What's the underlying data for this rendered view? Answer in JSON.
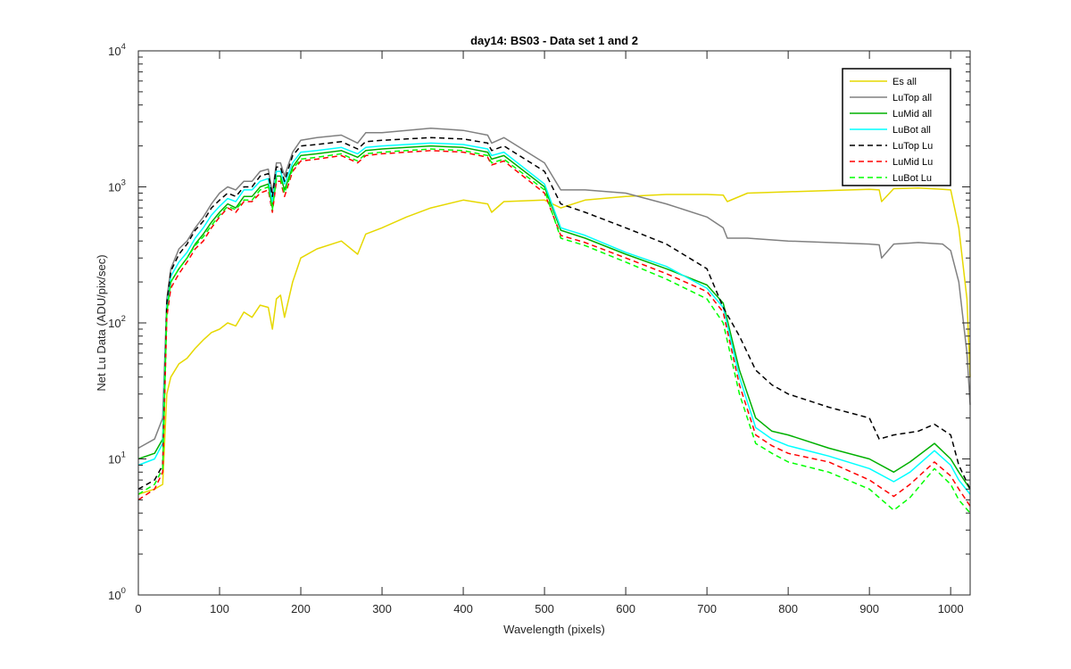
{
  "chart_data": {
    "type": "line",
    "title": "day14: BS03 - Data set 1 and 2",
    "xlabel": "Wavelength (pixels)",
    "ylabel": "Net Lu Data (ADU/pix/sec)",
    "xlim": [
      0,
      1024
    ],
    "ylim": [
      1,
      10000
    ],
    "yscale": "log",
    "grid": false,
    "legend_position": "top-right",
    "xticks": [
      0,
      100,
      200,
      300,
      400,
      500,
      600,
      700,
      800,
      900,
      1000
    ],
    "xtick_labels": [
      "0",
      "100",
      "200",
      "300",
      "400",
      "500",
      "600",
      "700",
      "800",
      "900",
      "1000"
    ],
    "yticks": [
      1,
      10,
      100,
      1000,
      10000
    ],
    "ytick_labels": [
      {
        "base": "10",
        "exp": "0"
      },
      {
        "base": "10",
        "exp": "1"
      },
      {
        "base": "10",
        "exp": "2"
      },
      {
        "base": "10",
        "exp": "3"
      },
      {
        "base": "10",
        "exp": "4"
      }
    ],
    "series": [
      {
        "name": "Es  all",
        "color": "#e6d800",
        "dash": "solid",
        "x": [
          0,
          20,
          30,
          35,
          40,
          50,
          60,
          70,
          80,
          90,
          100,
          110,
          120,
          130,
          140,
          150,
          160,
          165,
          170,
          175,
          180,
          190,
          200,
          220,
          250,
          270,
          280,
          300,
          330,
          360,
          400,
          430,
          435,
          450,
          500,
          520,
          550,
          600,
          650,
          700,
          720,
          725,
          750,
          800,
          850,
          900,
          912,
          915,
          930,
          960,
          990,
          1000,
          1010,
          1020,
          1024
        ],
        "y": [
          5.5,
          6,
          6.5,
          30,
          40,
          50,
          55,
          65,
          75,
          85,
          90,
          100,
          95,
          120,
          110,
          135,
          130,
          90,
          150,
          160,
          110,
          200,
          300,
          350,
          400,
          320,
          450,
          500,
          600,
          700,
          800,
          750,
          650,
          780,
          800,
          700,
          800,
          850,
          880,
          880,
          870,
          780,
          900,
          920,
          940,
          960,
          950,
          780,
          970,
          980,
          960,
          950,
          500,
          150,
          40
        ]
      },
      {
        "name": "LuTop  all",
        "color": "#808080",
        "dash": "solid",
        "x": [
          0,
          20,
          30,
          35,
          40,
          50,
          60,
          70,
          80,
          90,
          100,
          110,
          120,
          130,
          140,
          150,
          160,
          165,
          170,
          175,
          180,
          190,
          200,
          220,
          250,
          270,
          280,
          300,
          330,
          360,
          400,
          430,
          435,
          450,
          500,
          520,
          550,
          600,
          650,
          700,
          720,
          725,
          750,
          800,
          850,
          900,
          912,
          915,
          930,
          960,
          990,
          1000,
          1010,
          1020,
          1024
        ],
        "y": [
          12,
          14,
          20,
          150,
          250,
          350,
          400,
          500,
          600,
          750,
          900,
          1000,
          950,
          1100,
          1100,
          1300,
          1350,
          900,
          1500,
          1500,
          1200,
          1800,
          2200,
          2300,
          2400,
          2100,
          2500,
          2500,
          2600,
          2700,
          2600,
          2400,
          2100,
          2300,
          1500,
          950,
          950,
          900,
          750,
          600,
          500,
          420,
          420,
          400,
          390,
          380,
          375,
          300,
          380,
          390,
          380,
          340,
          200,
          60,
          25
        ]
      },
      {
        "name": "LuMid  all",
        "color": "#00b000",
        "dash": "solid",
        "x": [
          0,
          20,
          30,
          35,
          40,
          50,
          60,
          70,
          80,
          90,
          100,
          110,
          120,
          130,
          140,
          150,
          160,
          165,
          170,
          175,
          180,
          190,
          200,
          220,
          250,
          270,
          280,
          300,
          330,
          360,
          400,
          430,
          435,
          450,
          500,
          520,
          550,
          600,
          650,
          700,
          720,
          740,
          760,
          780,
          800,
          850,
          900,
          930,
          950,
          980,
          1000,
          1010,
          1024
        ],
        "y": [
          10,
          11,
          14,
          120,
          200,
          250,
          300,
          380,
          450,
          550,
          650,
          750,
          700,
          850,
          850,
          1000,
          1050,
          700,
          1200,
          1200,
          950,
          1400,
          1700,
          1750,
          1850,
          1650,
          1850,
          1900,
          1950,
          2000,
          1950,
          1800,
          1600,
          1700,
          1000,
          480,
          420,
          320,
          250,
          190,
          140,
          45,
          20,
          16,
          15,
          12,
          10,
          8,
          9.5,
          13,
          10,
          8,
          6
        ]
      },
      {
        "name": "LuBot  all",
        "color": "#00ffff",
        "dash": "solid",
        "x": [
          0,
          20,
          30,
          35,
          40,
          50,
          60,
          70,
          80,
          90,
          100,
          110,
          120,
          130,
          140,
          150,
          160,
          165,
          170,
          175,
          180,
          190,
          200,
          220,
          250,
          270,
          280,
          300,
          330,
          360,
          400,
          430,
          435,
          450,
          500,
          520,
          550,
          600,
          650,
          700,
          720,
          740,
          760,
          780,
          800,
          850,
          900,
          930,
          950,
          980,
          1000,
          1010,
          1024
        ],
        "y": [
          9,
          10,
          13,
          130,
          220,
          280,
          330,
          420,
          500,
          620,
          720,
          820,
          780,
          950,
          950,
          1100,
          1150,
          780,
          1300,
          1300,
          1050,
          1500,
          1800,
          1850,
          1950,
          1750,
          1950,
          2000,
          2050,
          2100,
          2050,
          1900,
          1700,
          1800,
          1050,
          500,
          440,
          330,
          260,
          180,
          130,
          40,
          17,
          14,
          12.5,
          10.5,
          8.5,
          6.8,
          8,
          11.5,
          9,
          7,
          5.5
        ]
      },
      {
        "name": "LuTop  Lu",
        "color": "#000000",
        "dash": "dashed",
        "x": [
          0,
          20,
          30,
          35,
          40,
          50,
          60,
          70,
          80,
          90,
          100,
          110,
          120,
          130,
          140,
          150,
          160,
          165,
          170,
          175,
          180,
          190,
          200,
          220,
          250,
          270,
          280,
          300,
          330,
          360,
          400,
          430,
          435,
          450,
          500,
          520,
          550,
          600,
          650,
          700,
          720,
          740,
          760,
          780,
          800,
          850,
          900,
          912,
          930,
          960,
          980,
          1000,
          1010,
          1024
        ],
        "y": [
          6,
          7,
          9,
          140,
          240,
          320,
          380,
          480,
          560,
          700,
          800,
          900,
          850,
          1000,
          1000,
          1200,
          1250,
          850,
          1400,
          1400,
          1100,
          1700,
          2000,
          2050,
          2150,
          1900,
          2150,
          2200,
          2250,
          2300,
          2250,
          2100,
          1850,
          2000,
          1300,
          750,
          650,
          500,
          380,
          250,
          130,
          80,
          45,
          35,
          30,
          24,
          20,
          14,
          15,
          16,
          18,
          15,
          9,
          6
        ]
      },
      {
        "name": "LuMid  Lu",
        "color": "#ff0000",
        "dash": "dashed",
        "x": [
          0,
          20,
          30,
          35,
          40,
          50,
          60,
          70,
          80,
          90,
          100,
          110,
          120,
          130,
          140,
          150,
          160,
          165,
          170,
          175,
          180,
          190,
          200,
          220,
          250,
          270,
          280,
          300,
          330,
          360,
          400,
          430,
          435,
          450,
          500,
          520,
          550,
          600,
          650,
          700,
          720,
          740,
          760,
          780,
          800,
          850,
          900,
          930,
          950,
          980,
          1000,
          1010,
          1024
        ],
        "y": [
          5,
          6,
          8,
          110,
          180,
          230,
          280,
          350,
          400,
          500,
          600,
          700,
          650,
          780,
          780,
          900,
          950,
          650,
          1100,
          1100,
          850,
          1300,
          1550,
          1600,
          1700,
          1500,
          1700,
          1750,
          1800,
          1850,
          1800,
          1650,
          1450,
          1550,
          900,
          440,
          390,
          300,
          230,
          170,
          120,
          35,
          15,
          12.5,
          11,
          9.5,
          7,
          5.3,
          6.5,
          9.5,
          7.5,
          6,
          4.5
        ]
      },
      {
        "name": "LuBot  Lu",
        "color": "#00ff00",
        "dash": "dashed",
        "x": [
          0,
          20,
          30,
          35,
          40,
          50,
          60,
          70,
          80,
          90,
          100,
          110,
          120,
          130,
          140,
          150,
          160,
          165,
          170,
          175,
          180,
          190,
          200,
          220,
          250,
          270,
          280,
          300,
          330,
          360,
          400,
          430,
          435,
          450,
          500,
          520,
          550,
          600,
          650,
          700,
          720,
          740,
          760,
          780,
          800,
          850,
          900,
          930,
          950,
          980,
          1000,
          1010,
          1024
        ],
        "y": [
          5.5,
          6.5,
          8.5,
          120,
          200,
          250,
          300,
          370,
          430,
          520,
          620,
          720,
          680,
          800,
          800,
          950,
          1000,
          680,
          1150,
          1150,
          900,
          1350,
          1600,
          1650,
          1750,
          1550,
          1750,
          1800,
          1850,
          1900,
          1850,
          1700,
          1500,
          1600,
          950,
          420,
          370,
          280,
          210,
          150,
          100,
          30,
          13,
          11,
          9.5,
          8,
          6,
          4.2,
          5.2,
          8.5,
          6.5,
          5,
          4
        ]
      }
    ]
  }
}
